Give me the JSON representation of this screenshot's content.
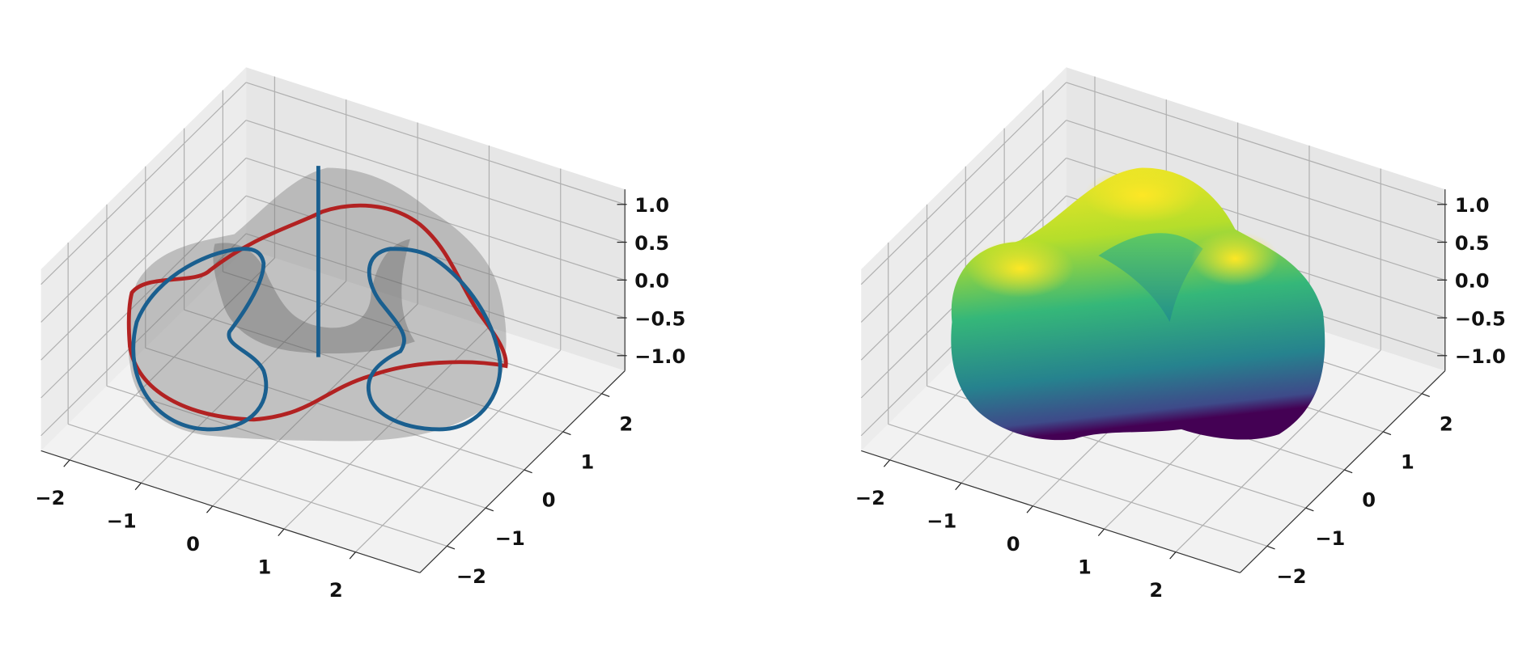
{
  "chart_data": [
    {
      "type": "surface3d",
      "xlim": [
        -2.4,
        2.9
      ],
      "ylim": [
        -2.7,
        2.6
      ],
      "zlim": [
        -1.2,
        1.2
      ],
      "grid": true,
      "xticks": [
        {
          "value": -2,
          "label": "−2"
        },
        {
          "value": -1,
          "label": "−1"
        },
        0,
        1,
        2
      ],
      "yticks": [
        {
          "value": -2,
          "label": "−2"
        },
        {
          "value": -1,
          "label": "−1"
        },
        0,
        1,
        2
      ],
      "zticks": [
        {
          "value": -1,
          "label": "−1.0"
        },
        {
          "value": -0.5,
          "label": "−0.5"
        },
        {
          "value": 0,
          "label": "0.0"
        },
        0.5,
        {
          "value": 1,
          "label": "1.0"
        }
      ]
    },
    {
      "type": "surface3d",
      "xlim": [
        -2.4,
        2.9
      ],
      "ylim": [
        -2.7,
        2.6
      ],
      "zlim": [
        -1.2,
        1.2
      ],
      "grid": true,
      "xticks": [
        {
          "value": -2,
          "label": "−2"
        },
        {
          "value": -1,
          "label": "−1"
        },
        0,
        1,
        2
      ],
      "yticks": [
        {
          "value": -2,
          "label": "−2"
        },
        {
          "value": -1,
          "label": "−1"
        },
        0,
        1,
        2
      ],
      "zticks": [
        {
          "value": -1,
          "label": "−1.0"
        },
        {
          "value": -0.5,
          "label": "−0.5"
        },
        {
          "value": 0,
          "label": "0.0"
        },
        0.5,
        {
          "value": 1,
          "label": "1.0"
        }
      ]
    }
  ]
}
